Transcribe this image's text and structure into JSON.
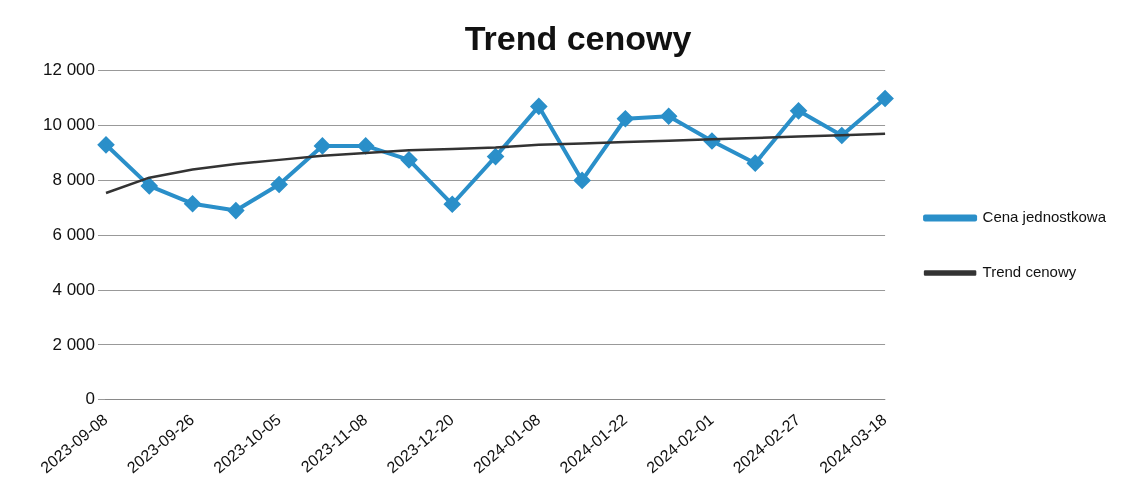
{
  "chart_data": {
    "type": "line",
    "title": "Trend cenowy",
    "categories": [
      "2023-09-08",
      null,
      "2023-09-26",
      null,
      "2023-10-05",
      null,
      "2023-11-08",
      null,
      "2023-12-20",
      null,
      "2024-01-08",
      null,
      "2024-01-22",
      null,
      "2024-02-01",
      null,
      "2024-02-27",
      null,
      "2024-03-18"
    ],
    "series": [
      {
        "name": "Cena jednostkowa",
        "color": "#2a8fc9",
        "marker": "diamond",
        "values": [
          9300,
          7800,
          7150,
          6900,
          7850,
          9260,
          9260,
          8750,
          7130,
          8870,
          10700,
          8000,
          10250,
          10340,
          9440,
          8630,
          10540,
          9640,
          10990
        ]
      },
      {
        "name": "Trend cenowy",
        "color": "#333333",
        "marker": "none",
        "values": [
          7540,
          8100,
          8400,
          8600,
          8750,
          8900,
          9000,
          9100,
          9150,
          9200,
          9300,
          9350,
          9400,
          9450,
          9500,
          9550,
          9600,
          9650,
          9700
        ]
      }
    ],
    "ylim": [
      0,
      12000
    ],
    "yticks": [
      {
        "value": 0,
        "label": "0"
      },
      {
        "value": 2000,
        "label": "2 000"
      },
      {
        "value": 4000,
        "label": "4 000"
      },
      {
        "value": 6000,
        "label": "6 000"
      },
      {
        "value": 8000,
        "label": "8 000"
      },
      {
        "value": 10000,
        "label": "10 000"
      },
      {
        "value": 12000,
        "label": "12 000"
      }
    ],
    "grid": "y",
    "legend": "right",
    "line_style": "solid"
  }
}
